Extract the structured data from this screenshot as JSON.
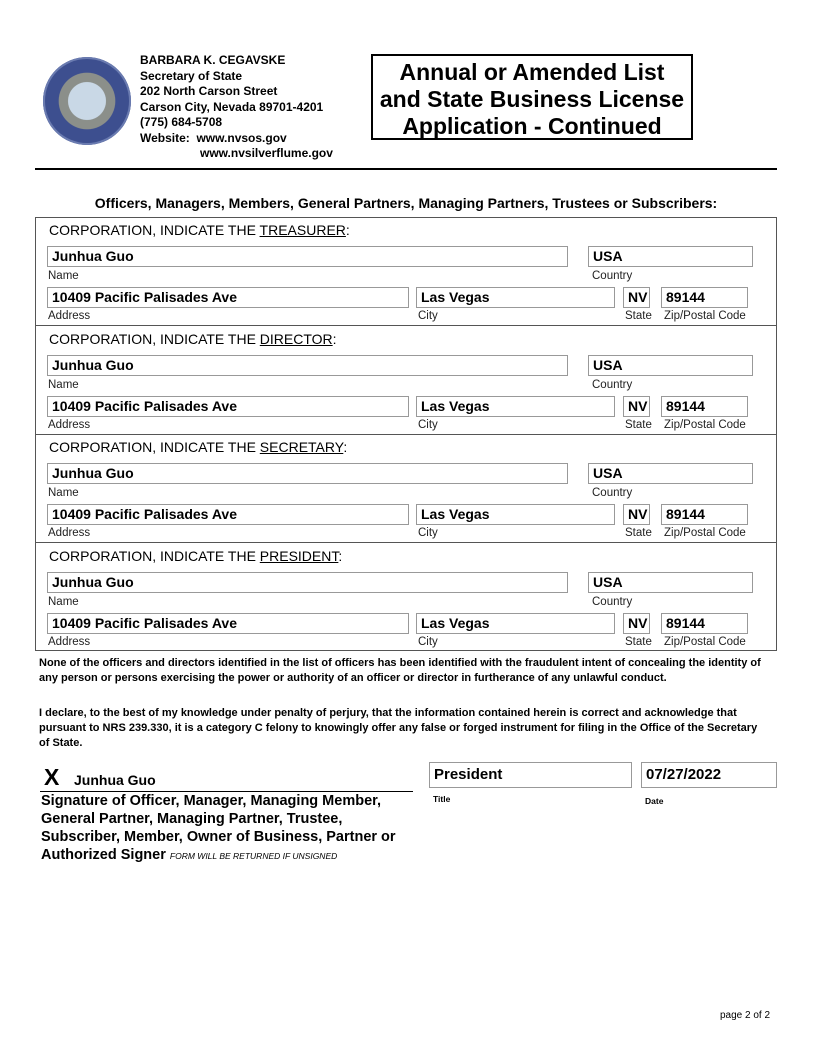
{
  "header": {
    "seal": "The Great Seal of the State of Nevada",
    "name": "BARBARA K. CEGAVSKE",
    "office": "Secretary of State",
    "street": "202 North Carson Street",
    "city": "Carson City, Nevada 89701-4201",
    "phone": "(775) 684-5708",
    "website_label": "Website:",
    "website1": "www.nvsos.gov",
    "website2": "www.nvsilverflume.gov",
    "title_lines": [
      "Annual or Amended List",
      "and State Business License",
      "Application - Continued"
    ]
  },
  "section_heading": "Officers, Managers, Members, General Partners, Managing Partners, Trustees or Subscribers:",
  "labels": {
    "prefix": "CORPORATION, INDICATE THE ",
    "name": "Name",
    "country": "Country",
    "address": "Address",
    "city": "City",
    "state": "State",
    "zip": "Zip/Postal Code"
  },
  "officers": [
    {
      "role": "TREASURER",
      "name": "Junhua Guo",
      "country": "USA",
      "address": "10409 Pacific Palisades Ave",
      "city": "Las Vegas",
      "state": "NV",
      "zip": "89144"
    },
    {
      "role": "DIRECTOR",
      "name": "Junhua Guo",
      "country": "USA",
      "address": "10409 Pacific Palisades Ave",
      "city": "Las Vegas",
      "state": "NV",
      "zip": "89144"
    },
    {
      "role": "SECRETARY",
      "name": "Junhua Guo",
      "country": "USA",
      "address": "10409 Pacific Palisades Ave",
      "city": "Las Vegas",
      "state": "NV",
      "zip": "89144"
    },
    {
      "role": "PRESIDENT",
      "name": "Junhua Guo",
      "country": "USA",
      "address": "10409 Pacific Palisades Ave",
      "city": "Las Vegas",
      "state": "NV",
      "zip": "89144"
    }
  ],
  "statement1": "None of the officers and directors identified in the list of officers has been identified with the fraudulent intent of concealing the identity of any person or persons exercising the power or authority of an officer or director in furtherance of any unlawful conduct.",
  "statement2": "I declare, to the best of my knowledge under penalty of perjury, that the information contained herein is correct and acknowledge that pursuant to NRS 239.330, it is a category C felony to knowingly offer any false or forged instrument for filing in the Office of the Secretary of State.",
  "signature": {
    "x": "X",
    "name": "Junhua Guo",
    "caption": "Signature of Officer, Manager, Managing Member, General Partner, Managing Partner, Trustee, Subscriber, Member, Owner of Business, Partner or Authorized Signer",
    "note": "FORM WILL BE RETURNED IF UNSIGNED",
    "title": "President",
    "title_label": "Title",
    "date": "07/27/2022",
    "date_label": "Date"
  },
  "page_number": "page 2 of 2"
}
